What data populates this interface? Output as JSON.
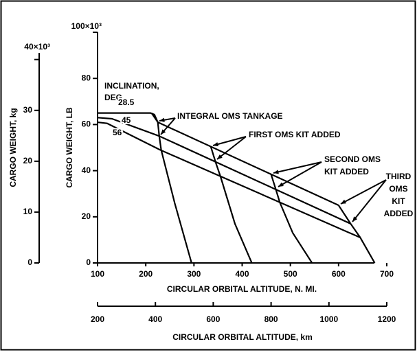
{
  "chart_data": {
    "type": "line",
    "xlabel": "CIRCULAR ORBITAL ALTITUDE, N. MI.",
    "ylabel": "CARGO WEIGHT, LB",
    "y2label": "CARGO WEIGHT, kg",
    "x2label": "CIRCULAR ORBITAL ALTITUDE, km",
    "legend_title": [
      "INCLINATION,",
      "DEG"
    ],
    "xlim": [
      100,
      700
    ],
    "xticks": [
      100,
      200,
      300,
      400,
      500,
      600,
      700
    ],
    "ylim": [
      0,
      100
    ],
    "yticks": [
      0,
      20,
      40,
      60,
      80,
      {
        "value": 100,
        "label": "100×10³"
      }
    ],
    "y2lim": [
      0,
      45.36
    ],
    "y2ticks": [
      0,
      10,
      20,
      30,
      {
        "value": 40,
        "label": "40×10³"
      }
    ],
    "x2lim": [
      200,
      1200
    ],
    "x2ticks": [
      200,
      400,
      600,
      800,
      1000,
      1200
    ],
    "series": [
      {
        "name": "28.5",
        "color": "#000000",
        "x": [
          100,
          210,
          218,
          225,
          600
        ],
        "values": [
          65,
          65,
          64.3,
          61,
          25
        ]
      },
      {
        "name": "45",
        "color": "#000000",
        "x": [
          100,
          130,
          228,
          625
        ],
        "values": [
          63,
          62.5,
          55,
          17
        ]
      },
      {
        "name": "56",
        "color": "#000000",
        "x": [
          100,
          120,
          230,
          645
        ],
        "values": [
          61,
          60.5,
          49,
          11
        ]
      },
      {
        "color": "#000000",
        "x": [
          212,
          225,
          228,
          232,
          260,
          295
        ],
        "values": [
          65,
          61,
          55,
          49,
          26,
          0
        ]
      },
      {
        "color": "#000000",
        "x": [
          335,
          345,
          355,
          385,
          420
        ],
        "values": [
          50.4,
          43.6,
          37.5,
          17,
          0
        ]
      },
      {
        "color": "#000000",
        "x": [
          460,
          470,
          478,
          505,
          545
        ],
        "values": [
          38.4,
          31.8,
          26.3,
          13,
          0
        ]
      },
      {
        "color": "#000000",
        "x": [
          600,
          625,
          645,
          675
        ],
        "values": [
          25,
          17,
          11,
          0
        ]
      }
    ],
    "annotations": [
      {
        "lines": [
          "INTEGRAL OMS TANKAGE"
        ]
      },
      {
        "lines": [
          "FIRST OMS KIT ADDED"
        ]
      },
      {
        "lines": [
          "SECOND OMS",
          "KIT ADDED"
        ]
      },
      {
        "lines": [
          "THIRD",
          "OMS",
          "KIT",
          "ADDED"
        ]
      }
    ]
  }
}
